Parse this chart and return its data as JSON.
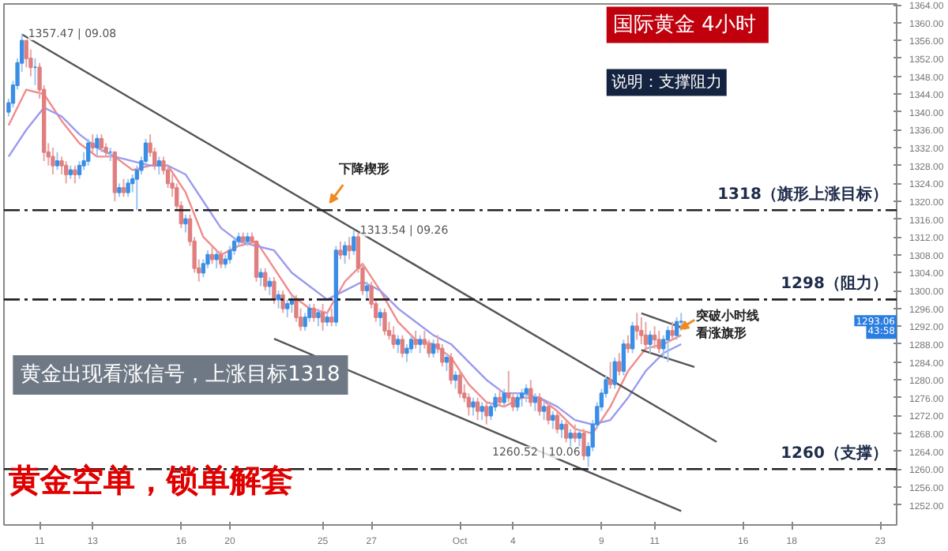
{
  "chart_data": {
    "type": "candlestick",
    "title": "国际黄金  4小时",
    "subtitle": "说明：支撑阻力",
    "ohlc": [
      [
        1340,
        1343,
        1339,
        1342
      ],
      [
        1342,
        1347,
        1341,
        1346
      ],
      [
        1346,
        1352,
        1345,
        1351
      ],
      [
        1351,
        1357.47,
        1349,
        1356
      ],
      [
        1356,
        1356,
        1350,
        1352
      ],
      [
        1352,
        1354,
        1348,
        1350
      ],
      [
        1350,
        1352,
        1346,
        1350
      ],
      [
        1350,
        1351,
        1343,
        1345
      ],
      [
        1345,
        1346,
        1329,
        1331
      ],
      [
        1331,
        1333,
        1328,
        1330
      ],
      [
        1330,
        1332,
        1326,
        1328
      ],
      [
        1328,
        1331,
        1327,
        1329
      ],
      [
        1329,
        1330,
        1326,
        1328
      ],
      [
        1328,
        1329,
        1324,
        1326
      ],
      [
        1326,
        1328,
        1325,
        1327
      ],
      [
        1327,
        1328,
        1324,
        1326
      ],
      [
        1326,
        1329,
        1325,
        1328
      ],
      [
        1328,
        1331,
        1327,
        1329
      ],
      [
        1329,
        1334,
        1328,
        1333
      ],
      [
        1333,
        1335,
        1331,
        1332
      ],
      [
        1332,
        1335,
        1330,
        1334
      ],
      [
        1334,
        1335,
        1331,
        1332
      ],
      [
        1332,
        1333,
        1330,
        1331
      ],
      [
        1331,
        1332,
        1329,
        1331
      ],
      [
        1331,
        1331,
        1320,
        1322
      ],
      [
        1322,
        1324,
        1321,
        1323
      ],
      [
        1323,
        1325,
        1321,
        1322
      ],
      [
        1322,
        1325,
        1321,
        1324
      ],
      [
        1324,
        1326,
        1322,
        1325
      ],
      [
        1325,
        1328,
        1318,
        1327
      ],
      [
        1327,
        1330,
        1326,
        1329
      ],
      [
        1329,
        1334,
        1328,
        1333
      ],
      [
        1333,
        1335,
        1330,
        1331
      ],
      [
        1331,
        1332,
        1327,
        1328
      ],
      [
        1328,
        1330,
        1326,
        1329
      ],
      [
        1329,
        1330,
        1326,
        1327
      ],
      [
        1327,
        1328,
        1323,
        1324
      ],
      [
        1324,
        1326,
        1321,
        1323
      ],
      [
        1323,
        1324,
        1318,
        1319
      ],
      [
        1319,
        1320,
        1314,
        1315
      ],
      [
        1315,
        1317,
        1313,
        1316
      ],
      [
        1316,
        1317,
        1310,
        1311
      ],
      [
        1311,
        1312,
        1304,
        1305
      ],
      [
        1305,
        1307,
        1302,
        1304
      ],
      [
        1304,
        1307,
        1303,
        1306
      ],
      [
        1306,
        1309,
        1305,
        1308
      ],
      [
        1308,
        1310,
        1306,
        1307
      ],
      [
        1307,
        1309,
        1305,
        1308
      ],
      [
        1308,
        1309,
        1305,
        1306
      ],
      [
        1306,
        1308,
        1305,
        1307
      ],
      [
        1307,
        1310,
        1306,
        1309
      ],
      [
        1309,
        1312,
        1308,
        1311
      ],
      [
        1311,
        1313,
        1310,
        1312
      ],
      [
        1312,
        1313,
        1310,
        1311
      ],
      [
        1311,
        1313,
        1310,
        1312
      ],
      [
        1312,
        1313,
        1310,
        1311
      ],
      [
        1311,
        1311,
        1302,
        1303
      ],
      [
        1303,
        1305,
        1301,
        1304
      ],
      [
        1304,
        1305,
        1300,
        1301
      ],
      [
        1301,
        1303,
        1299,
        1302
      ],
      [
        1302,
        1303,
        1297,
        1298
      ],
      [
        1298,
        1300,
        1296,
        1299
      ],
      [
        1299,
        1300,
        1295,
        1296
      ],
      [
        1296,
        1298,
        1294,
        1297
      ],
      [
        1297,
        1299,
        1295,
        1298
      ],
      [
        1298,
        1299,
        1293,
        1294
      ],
      [
        1294,
        1296,
        1291,
        1292
      ],
      [
        1292,
        1295,
        1291,
        1294
      ],
      [
        1294,
        1297,
        1293,
        1296
      ],
      [
        1296,
        1297,
        1293,
        1294
      ],
      [
        1294,
        1296,
        1292,
        1295
      ],
      [
        1295,
        1297,
        1291,
        1293
      ],
      [
        1293,
        1295,
        1292,
        1294
      ],
      [
        1294,
        1296,
        1292,
        1293
      ],
      [
        1293,
        1310,
        1292,
        1309
      ],
      [
        1309,
        1311,
        1307,
        1308
      ],
      [
        1308,
        1311,
        1306,
        1310
      ],
      [
        1310,
        1312,
        1307,
        1309
      ],
      [
        1309,
        1313.54,
        1308,
        1312
      ],
      [
        1312,
        1313,
        1304,
        1305
      ],
      [
        1305,
        1306,
        1299,
        1300
      ],
      [
        1300,
        1302,
        1298,
        1301
      ],
      [
        1301,
        1302,
        1296,
        1297
      ],
      [
        1297,
        1298,
        1293,
        1294
      ],
      [
        1294,
        1296,
        1292,
        1295
      ],
      [
        1295,
        1296,
        1290,
        1291
      ],
      [
        1291,
        1293,
        1289,
        1290
      ],
      [
        1290,
        1292,
        1287,
        1288
      ],
      [
        1288,
        1290,
        1286,
        1289
      ],
      [
        1289,
        1290,
        1285,
        1286
      ],
      [
        1286,
        1288,
        1284,
        1287
      ],
      [
        1287,
        1290,
        1286,
        1289
      ],
      [
        1289,
        1291,
        1287,
        1288
      ],
      [
        1288,
        1290,
        1286,
        1289
      ],
      [
        1289,
        1291,
        1287,
        1288
      ],
      [
        1288,
        1289,
        1285,
        1286
      ],
      [
        1286,
        1289,
        1285,
        1288
      ],
      [
        1288,
        1290,
        1286,
        1287
      ],
      [
        1287,
        1288,
        1283,
        1284
      ],
      [
        1284,
        1286,
        1282,
        1285
      ],
      [
        1285,
        1286,
        1279,
        1280
      ],
      [
        1280,
        1282,
        1278,
        1281
      ],
      [
        1281,
        1282,
        1276,
        1277
      ],
      [
        1277,
        1279,
        1275,
        1276
      ],
      [
        1276,
        1277,
        1272,
        1274
      ],
      [
        1274,
        1276,
        1272,
        1275
      ],
      [
        1275,
        1276,
        1271,
        1273
      ],
      [
        1273,
        1275,
        1271,
        1274
      ],
      [
        1274,
        1275,
        1270,
        1272
      ],
      [
        1272,
        1275,
        1271,
        1274
      ],
      [
        1274,
        1277,
        1273,
        1276
      ],
      [
        1276,
        1278,
        1274,
        1275
      ],
      [
        1275,
        1278,
        1274,
        1277
      ],
      [
        1277,
        1282,
        1275,
        1276
      ],
      [
        1276,
        1277,
        1273,
        1274
      ],
      [
        1274,
        1277,
        1273,
        1276
      ],
      [
        1276,
        1278,
        1274,
        1277
      ],
      [
        1277,
        1279,
        1275,
        1278
      ],
      [
        1278,
        1280,
        1274,
        1275
      ],
      [
        1275,
        1277,
        1273,
        1276
      ],
      [
        1276,
        1277,
        1272,
        1273
      ],
      [
        1273,
        1275,
        1271,
        1274
      ],
      [
        1274,
        1275,
        1270,
        1271
      ],
      [
        1271,
        1273,
        1269,
        1272
      ],
      [
        1272,
        1273,
        1268,
        1269
      ],
      [
        1269,
        1271,
        1267,
        1270
      ],
      [
        1270,
        1271,
        1266,
        1267
      ],
      [
        1267,
        1269,
        1265,
        1268
      ],
      [
        1268,
        1270,
        1266,
        1267
      ],
      [
        1267,
        1269,
        1265,
        1268
      ],
      [
        1268,
        1269,
        1262,
        1263
      ],
      [
        1263,
        1266,
        1260.52,
        1265
      ],
      [
        1265,
        1271,
        1264,
        1270
      ],
      [
        1270,
        1275,
        1269,
        1274
      ],
      [
        1274,
        1278,
        1273,
        1277
      ],
      [
        1277,
        1281,
        1276,
        1280
      ],
      [
        1280,
        1284,
        1278,
        1279
      ],
      [
        1279,
        1285,
        1278,
        1284
      ],
      [
        1284,
        1286,
        1281,
        1282
      ],
      [
        1282,
        1289,
        1281,
        1288
      ],
      [
        1288,
        1290,
        1286,
        1287
      ],
      [
        1287,
        1293,
        1286,
        1292
      ],
      [
        1292,
        1295,
        1289,
        1291
      ],
      [
        1291,
        1294,
        1288,
        1290
      ],
      [
        1290,
        1293,
        1287,
        1288
      ],
      [
        1288,
        1291,
        1286,
        1290
      ],
      [
        1290,
        1292,
        1287,
        1289
      ],
      [
        1289,
        1291,
        1286,
        1287
      ],
      [
        1287,
        1290,
        1285,
        1289
      ],
      [
        1289,
        1292,
        1284,
        1291
      ],
      [
        1291,
        1293,
        1289,
        1290
      ],
      [
        1290,
        1294,
        1289,
        1293
      ],
      [
        1293,
        1295,
        1291,
        1293.06
      ],
      null,
      null,
      null,
      null,
      null,
      null,
      null,
      null,
      null,
      null,
      null,
      null,
      null,
      null,
      null,
      null,
      null,
      null,
      null,
      null,
      null,
      null,
      null,
      null,
      null,
      null,
      null,
      null,
      null,
      null,
      null,
      null,
      null,
      null,
      null,
      null,
      null,
      null,
      null,
      null,
      null,
      null,
      null,
      null,
      null,
      null,
      null,
      null
    ],
    "series": [
      {
        "type": "line",
        "color": "#f28b8b",
        "values": [
          1337,
          null,
          null,
          null,
          1345,
          null,
          null,
          null,
          1344,
          null,
          null,
          null,
          1338,
          null,
          null,
          null,
          1333,
          null,
          null,
          null,
          1330,
          null,
          null,
          null,
          1330,
          null,
          null,
          null,
          1327,
          null,
          null,
          null,
          1328,
          null,
          null,
          null,
          1328,
          null,
          null,
          null,
          1322,
          null,
          null,
          null,
          1312,
          null,
          null,
          null,
          1308,
          null,
          null,
          null,
          1310,
          null,
          null,
          null,
          1311,
          null,
          null,
          null,
          1305,
          null,
          null,
          null,
          1299,
          null,
          null,
          null,
          1296,
          null,
          null,
          null,
          1295,
          null,
          null,
          null,
          1302,
          null,
          null,
          null,
          1306,
          null,
          null,
          null,
          1300,
          null,
          null,
          null,
          1293,
          null,
          null,
          null,
          1289,
          null,
          null,
          null,
          1288,
          null,
          null,
          null,
          1285,
          null,
          null,
          null,
          1279,
          null,
          null,
          null,
          1275,
          null,
          null,
          null,
          1274,
          null,
          null,
          null,
          1276,
          null,
          null,
          null,
          1276,
          null,
          null,
          null,
          1273,
          null,
          null,
          null,
          1269,
          null,
          null,
          null,
          1268,
          null,
          null,
          null,
          1274,
          null,
          null,
          null,
          1282,
          null,
          null,
          null,
          1287,
          null,
          null,
          null,
          1288,
          null,
          null,
          null,
          1290,
          null,
          null,
          null,
          null,
          null,
          null,
          null,
          null,
          null,
          null,
          null,
          null,
          null,
          null,
          null,
          null,
          null,
          null,
          null,
          null,
          null,
          null,
          null,
          null,
          null,
          null,
          null,
          null,
          null,
          null,
          null,
          null,
          null,
          null,
          null,
          null,
          null,
          null,
          null,
          null,
          null,
          null,
          null,
          null,
          null,
          null,
          null,
          null
        ]
      },
      {
        "type": "line",
        "color": "#9a9af0",
        "values": [
          1330,
          null,
          null,
          null,
          1336,
          null,
          null,
          null,
          1341,
          null,
          null,
          null,
          1339,
          null,
          null,
          null,
          1335,
          null,
          null,
          null,
          1332,
          null,
          null,
          null,
          1330,
          null,
          null,
          null,
          1329,
          null,
          null,
          null,
          1328,
          null,
          null,
          null,
          1328,
          null,
          null,
          null,
          1326,
          null,
          null,
          null,
          1320,
          null,
          null,
          null,
          1314,
          null,
          null,
          null,
          1311,
          null,
          null,
          null,
          1310,
          null,
          null,
          null,
          1309,
          null,
          null,
          null,
          1304,
          null,
          null,
          null,
          1301,
          null,
          null,
          null,
          1298,
          null,
          null,
          null,
          1300,
          null,
          null,
          null,
          1302,
          null,
          null,
          null,
          1300,
          null,
          null,
          null,
          1296,
          null,
          null,
          null,
          1293,
          null,
          null,
          null,
          1290,
          null,
          null,
          null,
          1288,
          null,
          null,
          null,
          1284,
          null,
          null,
          null,
          1280,
          null,
          null,
          null,
          1277,
          null,
          null,
          null,
          1277,
          null,
          null,
          null,
          1276,
          null,
          null,
          null,
          1274,
          null,
          null,
          null,
          1271,
          null,
          null,
          null,
          1270,
          null,
          null,
          null,
          1271,
          null,
          null,
          null,
          1276,
          null,
          null,
          null,
          1282,
          null,
          null,
          null,
          1286,
          null,
          null,
          null,
          1288,
          null,
          null,
          null,
          null,
          null,
          null,
          null,
          null,
          null,
          null,
          null,
          null,
          null,
          null,
          null,
          null,
          null,
          null,
          null,
          null,
          null,
          null,
          null,
          null,
          null,
          null,
          null,
          null,
          null,
          null,
          null,
          null,
          null,
          null,
          null,
          null,
          null,
          null,
          null,
          null,
          null,
          null,
          null,
          null,
          null,
          null,
          null,
          null
        ]
      },
      {
        "type": "line",
        "color": "#555555",
        "values": [
          null,
          null,
          null,
          1357.4,
          null,
          null,
          null,
          null,
          null,
          null,
          null,
          null,
          null,
          null,
          null,
          null,
          null,
          null,
          null,
          null,
          null,
          null,
          null,
          null,
          null,
          null,
          null,
          null,
          null,
          null,
          null,
          null,
          null,
          null,
          null,
          null,
          null,
          null,
          null,
          null,
          null,
          null,
          null,
          null,
          null,
          null,
          null,
          null,
          null,
          null,
          null,
          null,
          null,
          null,
          null,
          null,
          null,
          null,
          null,
          null,
          null,
          null,
          null,
          null,
          null,
          null,
          null,
          null,
          null,
          null,
          null,
          null,
          null,
          null,
          null,
          null,
          null,
          null,
          null,
          null,
          null,
          null,
          null,
          null,
          null,
          null,
          null,
          null,
          null,
          null,
          null,
          null,
          null,
          null,
          null,
          null,
          null,
          null,
          null,
          null,
          null,
          null,
          null,
          null,
          null,
          null,
          null,
          null,
          null,
          null,
          null,
          null,
          null,
          null,
          null,
          null,
          null,
          null,
          null,
          null,
          null,
          null,
          null,
          null,
          null,
          null,
          null,
          null,
          null,
          null,
          null,
          null,
          null,
          null,
          null,
          null,
          null,
          null,
          null,
          null,
          null,
          null,
          null,
          null,
          null,
          null,
          null,
          null,
          null,
          null,
          null,
          null,
          null,
          null,
          null,
          null,
          null,
          null,
          null,
          null,
          1266.1,
          null,
          null,
          null,
          null,
          null,
          null,
          null,
          null,
          null,
          null,
          null,
          null,
          null,
          null,
          null,
          null,
          null,
          null,
          null,
          null,
          null,
          null,
          null,
          null,
          null,
          null,
          null,
          null,
          null,
          null,
          null,
          null,
          null,
          null,
          null,
          null,
          null,
          null,
          null,
          null
        ]
      },
      {
        "type": "line",
        "color": "#555555",
        "values": [
          null,
          null,
          null,
          null,
          null,
          null,
          null,
          null,
          null,
          null,
          null,
          null,
          null,
          null,
          null,
          null,
          null,
          null,
          null,
          null,
          null,
          null,
          null,
          null,
          null,
          null,
          null,
          null,
          null,
          null,
          null,
          null,
          null,
          null,
          null,
          null,
          null,
          null,
          null,
          null,
          null,
          null,
          null,
          null,
          null,
          null,
          null,
          null,
          null,
          null,
          null,
          null,
          null,
          null,
          null,
          null,
          null,
          null,
          null,
          null,
          1289.2,
          null,
          null,
          null,
          null,
          null,
          null,
          null,
          null,
          null,
          null,
          null,
          null,
          null,
          null,
          null,
          null,
          null,
          null,
          null,
          null,
          null,
          null,
          null,
          null,
          null,
          null,
          null,
          null,
          null,
          null,
          null,
          null,
          null,
          null,
          null,
          null,
          null,
          null,
          null,
          null,
          null,
          null,
          null,
          null,
          null,
          null,
          null,
          null,
          null,
          null,
          null,
          null,
          null,
          null,
          null,
          null,
          null,
          null,
          null,
          null,
          null,
          null,
          null,
          null,
          null,
          null,
          null,
          null,
          null,
          null,
          null,
          null,
          null,
          null,
          null,
          null,
          null,
          null,
          null,
          null,
          null,
          null,
          null,
          null,
          null,
          null,
          null,
          null,
          null,
          null,
          null,
          1250.6,
          null,
          null,
          null,
          null,
          null,
          null,
          null,
          null,
          null,
          null,
          null,
          null,
          null,
          null,
          null,
          null,
          null,
          null,
          null,
          null,
          null,
          null,
          null,
          null,
          null,
          null,
          null,
          null,
          null,
          null,
          null,
          null,
          null,
          null,
          null,
          null,
          null,
          null,
          null,
          null,
          null,
          null,
          null,
          null,
          null,
          null,
          null,
          null
        ]
      },
      {
        "type": "line",
        "color": "#555555",
        "values": [
          null,
          null,
          null,
          null,
          null,
          null,
          null,
          null,
          null,
          null,
          null,
          null,
          null,
          null,
          null,
          null,
          null,
          null,
          null,
          null,
          null,
          null,
          null,
          null,
          null,
          null,
          null,
          null,
          null,
          null,
          null,
          null,
          null,
          null,
          null,
          null,
          null,
          null,
          null,
          null,
          null,
          null,
          null,
          null,
          null,
          null,
          null,
          null,
          null,
          null,
          null,
          null,
          null,
          null,
          null,
          null,
          null,
          null,
          null,
          null,
          null,
          null,
          null,
          null,
          null,
          null,
          null,
          null,
          null,
          null,
          null,
          null,
          null,
          null,
          null,
          null,
          null,
          null,
          null,
          null,
          null,
          null,
          null,
          null,
          null,
          null,
          null,
          null,
          null,
          null,
          null,
          null,
          null,
          null,
          null,
          null,
          null,
          null,
          null,
          null,
          null,
          null,
          null,
          null,
          null,
          null,
          null,
          null,
          null,
          null,
          null,
          null,
          null,
          null,
          null,
          null,
          null,
          null,
          null,
          null,
          null,
          null,
          null,
          null,
          null,
          null,
          null,
          null,
          null,
          null,
          null,
          null,
          null,
          null,
          null,
          null,
          null,
          null,
          null,
          null,
          null,
          null,
          null,
          1294.9,
          null,
          null,
          null,
          null,
          null,
          null,
          null,
          null,
          null,
          1291.4,
          null,
          null,
          null,
          null,
          null,
          null,
          null,
          null,
          null,
          null,
          null,
          null,
          null,
          null,
          null,
          null,
          null,
          null,
          null,
          null,
          null,
          null,
          null,
          null,
          null,
          null,
          null,
          null,
          null,
          null,
          null,
          null,
          null,
          null,
          null,
          null,
          null,
          null,
          null,
          null,
          null,
          null,
          null,
          null,
          null,
          null,
          null
        ]
      },
      {
        "type": "line",
        "color": "#555555",
        "values": [
          null,
          null,
          null,
          null,
          null,
          null,
          null,
          null,
          null,
          null,
          null,
          null,
          null,
          null,
          null,
          null,
          null,
          null,
          null,
          null,
          null,
          null,
          null,
          null,
          null,
          null,
          null,
          null,
          null,
          null,
          null,
          null,
          null,
          null,
          null,
          null,
          null,
          null,
          null,
          null,
          null,
          null,
          null,
          null,
          null,
          null,
          null,
          null,
          null,
          null,
          null,
          null,
          null,
          null,
          null,
          null,
          null,
          null,
          null,
          null,
          null,
          null,
          null,
          null,
          null,
          null,
          null,
          null,
          null,
          null,
          null,
          null,
          null,
          null,
          null,
          null,
          null,
          null,
          null,
          null,
          null,
          null,
          null,
          null,
          null,
          null,
          null,
          null,
          null,
          null,
          null,
          null,
          null,
          null,
          null,
          null,
          null,
          null,
          null,
          null,
          null,
          null,
          null,
          null,
          null,
          null,
          null,
          null,
          null,
          null,
          null,
          null,
          null,
          null,
          null,
          null,
          null,
          null,
          null,
          null,
          null,
          null,
          null,
          null,
          null,
          null,
          null,
          null,
          null,
          null,
          null,
          null,
          null,
          null,
          null,
          null,
          null,
          null,
          null,
          null,
          null,
          null,
          null,
          1286.7,
          null,
          null,
          null,
          null,
          null,
          null,
          null,
          null,
          null,
          null,
          null,
          1282.9,
          null,
          null,
          null,
          null,
          null,
          null,
          null,
          null,
          null,
          null,
          null,
          null,
          null,
          null,
          null,
          null,
          null,
          null,
          null,
          null,
          null,
          null,
          null,
          null,
          null,
          null,
          null,
          null,
          null,
          null,
          null,
          null,
          null,
          null,
          null,
          null,
          null,
          null,
          null,
          null,
          null,
          null,
          null,
          null,
          null
        ]
      }
    ],
    "categories": [
      null,
      null,
      null,
      null,
      null,
      null,
      null,
      "11",
      null,
      null,
      null,
      null,
      null,
      null,
      null,
      null,
      null,
      null,
      null,
      "13",
      null,
      null,
      null,
      null,
      null,
      null,
      null,
      null,
      null,
      null,
      null,
      null,
      null,
      null,
      null,
      null,
      null,
      null,
      null,
      "16",
      null,
      null,
      null,
      null,
      null,
      null,
      null,
      null,
      null,
      null,
      "20",
      null,
      null,
      null,
      null,
      null,
      null,
      null,
      null,
      null,
      null,
      null,
      null,
      null,
      null,
      null,
      null,
      null,
      null,
      null,
      null,
      "25",
      null,
      null,
      null,
      null,
      null,
      null,
      null,
      null,
      null,
      null,
      "27",
      null,
      null,
      null,
      null,
      null,
      null,
      null,
      null,
      null,
      null,
      null,
      null,
      null,
      null,
      null,
      null,
      null,
      null,
      null,
      "Oct",
      null,
      null,
      null,
      null,
      null,
      null,
      null,
      null,
      null,
      null,
      null,
      "4",
      null,
      null,
      null,
      null,
      null,
      null,
      null,
      null,
      null,
      null,
      null,
      null,
      null,
      null,
      null,
      null,
      null,
      null,
      null,
      "9",
      null,
      null,
      null,
      null,
      null,
      null,
      null,
      null,
      null,
      null,
      null,
      "11",
      null,
      null,
      null,
      null,
      null,
      null,
      null,
      null,
      null,
      null,
      null,
      null,
      null,
      null,
      null,
      null,
      null,
      null,
      null,
      "16",
      null,
      null,
      null,
      null,
      null,
      null,
      null,
      null,
      null,
      null,
      "18",
      null,
      null,
      null,
      null,
      null,
      null,
      null,
      null,
      null,
      null,
      null,
      null,
      null,
      null,
      null,
      null,
      null,
      null,
      null,
      "23",
      null,
      null,
      null
    ],
    "ylim": [
      1247.5,
      1364.2
    ],
    "yticks": [
      {
        "value": 1252,
        "label": "1252.00"
      },
      {
        "value": 1256,
        "label": "1256.00"
      },
      {
        "value": 1260,
        "label": "1260.00"
      },
      {
        "value": 1264,
        "label": "1264.00"
      },
      {
        "value": 1268,
        "label": "1268.00"
      },
      {
        "value": 1272,
        "label": "1272.00"
      },
      {
        "value": 1276,
        "label": "1276.00"
      },
      {
        "value": 1280,
        "label": "1280.00"
      },
      {
        "value": 1284,
        "label": "1284.00"
      },
      {
        "value": 1288,
        "label": "1288.00"
      },
      {
        "value": 1292,
        "label": "1292.00"
      },
      {
        "value": 1296,
        "label": "1296.00"
      },
      {
        "value": 1300,
        "label": "1300.00"
      },
      {
        "value": 1304,
        "label": "1304.00"
      },
      {
        "value": 1308,
        "label": "1308.00"
      },
      {
        "value": 1312,
        "label": "1312.00"
      },
      {
        "value": 1316,
        "label": "1316.00"
      },
      {
        "value": 1320,
        "label": "1320.00"
      },
      {
        "value": 1324,
        "label": "1324.00"
      },
      {
        "value": 1328,
        "label": "1328.00"
      },
      {
        "value": 1332,
        "label": "1332.00"
      },
      {
        "value": 1336,
        "label": "1336.00"
      },
      {
        "value": 1340,
        "label": "1340.00"
      },
      {
        "value": 1344,
        "label": "1344.00"
      },
      {
        "value": 1348,
        "label": "1348.00"
      },
      {
        "value": 1352,
        "label": "1352.00"
      },
      {
        "value": 1356,
        "label": "1356.00"
      },
      {
        "value": 1360,
        "label": "1360.00"
      },
      {
        "value": 1364,
        "label": "1364.00"
      }
    ],
    "ref_lines": [
      {
        "axis": "y",
        "value": 1318,
        "label": "1318（旗形上涨目标）",
        "line_style": "dashed",
        "color": "#222222"
      },
      {
        "axis": "y",
        "value": 1298,
        "label": "1298（阻力）",
        "line_style": "dashed",
        "color": "#222222"
      },
      {
        "axis": "y",
        "value": 1260,
        "label": "1260（支撑）",
        "line_style": "dashed",
        "color": "#222222"
      }
    ],
    "annotations": [
      "黄金出现看涨信号，上涨目标1318",
      "黄金空单，锁单解套",
      "1293.06",
      "43:58",
      "1357.47 | 09.08",
      "1313.54 | 09.26",
      "1260.52 | 10.06",
      "下降楔形",
      "突破小时线看涨旗形"
    ]
  }
}
